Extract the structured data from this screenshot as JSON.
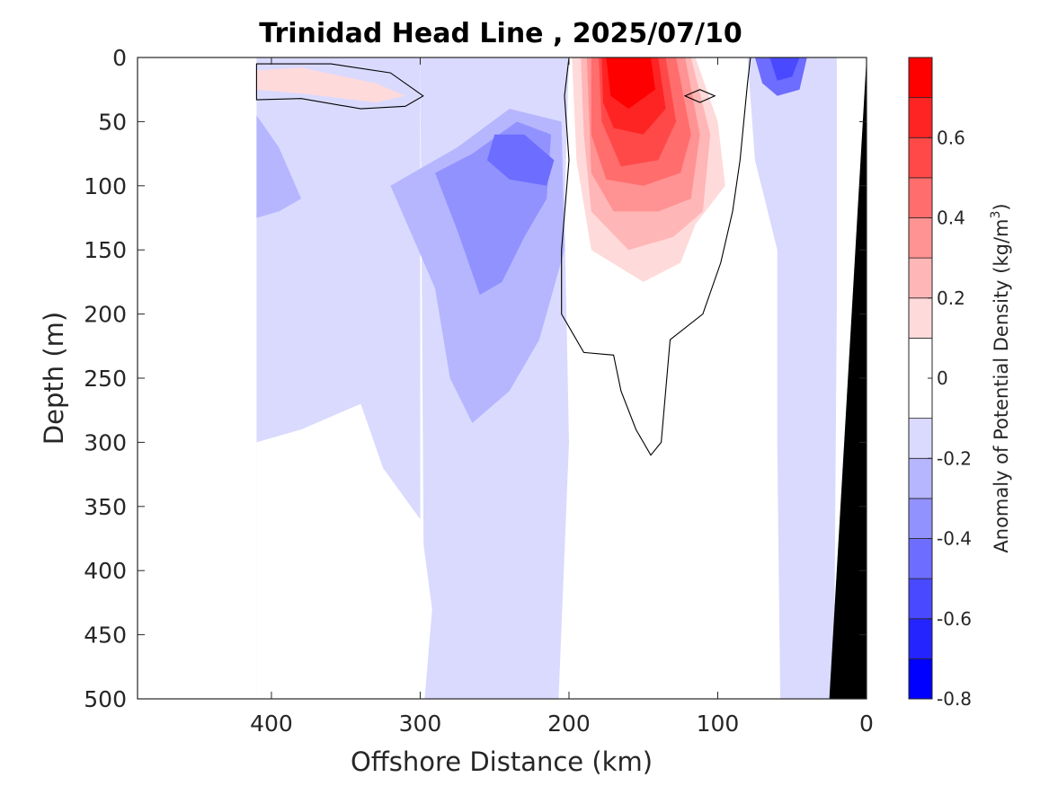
{
  "chart_data": {
    "type": "contour",
    "title": "Trinidad Head Line , 2025/07/10",
    "xlabel": "Offshore Distance (km)",
    "ylabel": "Depth (m)",
    "xlim": [
      490,
      0
    ],
    "ylim": [
      0,
      500
    ],
    "x_ticks": [
      400,
      300,
      200,
      100,
      0
    ],
    "y_ticks": [
      0,
      50,
      100,
      150,
      200,
      250,
      300,
      350,
      400,
      450,
      500
    ],
    "colorbar": {
      "label": "Anomaly of Potential Density (kg/m",
      "label_superscript": "3",
      "label_suffix": ")",
      "range": [
        -0.8,
        0.8
      ],
      "ticks": [
        0.6,
        0.4,
        0.2,
        0,
        -0.2,
        -0.4,
        -0.6,
        -0.8
      ],
      "levels": [
        -0.8,
        -0.7,
        -0.6,
        -0.5,
        -0.4,
        -0.3,
        -0.2,
        -0.1,
        0.1,
        0.2,
        0.3,
        0.4,
        0.5,
        0.6,
        0.7,
        0.8
      ],
      "colors": [
        "#0000ff",
        "#2424ff",
        "#4949ff",
        "#6d6dff",
        "#9292ff",
        "#b6b6ff",
        "#dadaff",
        "#ffffff",
        "#ffdada",
        "#ffb6b6",
        "#ff9292",
        "#ff6d6d",
        "#ff4949",
        "#ff2424",
        "#ff0000"
      ]
    },
    "data_extent_km": [
      410,
      0
    ],
    "bathymetry_color": "#000000",
    "bathymetry": [
      [
        0,
        0
      ],
      [
        25,
        500
      ]
    ],
    "regions": [
      {
        "name": "offshore-light-blue",
        "level": -0.15,
        "points": [
          [
            410,
            0
          ],
          [
            300,
            0
          ],
          [
            300,
            500
          ],
          [
            410,
            500
          ]
        ]
      },
      {
        "name": "central-light-blue",
        "level": -0.15,
        "points": [
          [
            300,
            0
          ],
          [
            200,
            0
          ],
          [
            203,
            120
          ],
          [
            200,
            300
          ],
          [
            207,
            500
          ],
          [
            297,
            500
          ]
        ]
      },
      {
        "name": "inner-light-blue",
        "level": -0.15,
        "points": [
          [
            80,
            0
          ],
          [
            20,
            0
          ],
          [
            20,
            200
          ],
          [
            22,
            500
          ],
          [
            58,
            500
          ],
          [
            60,
            300
          ],
          [
            60,
            150
          ],
          [
            75,
            80
          ]
        ]
      },
      {
        "name": "offshore-white-patch",
        "level": 0,
        "points": [
          [
            410,
            300
          ],
          [
            380,
            290
          ],
          [
            340,
            270
          ],
          [
            325,
            320
          ],
          [
            300,
            360
          ],
          [
            292,
            430
          ],
          [
            297,
            500
          ],
          [
            410,
            500
          ]
        ]
      },
      {
        "name": "central-blue-patch",
        "level": -0.25,
        "points": [
          [
            320,
            100
          ],
          [
            275,
            70
          ],
          [
            240,
            40
          ],
          [
            205,
            50
          ],
          [
            203,
            150
          ],
          [
            220,
            220
          ],
          [
            240,
            260
          ],
          [
            265,
            285
          ],
          [
            280,
            250
          ],
          [
            290,
            180
          ]
        ]
      },
      {
        "name": "central-blue-core",
        "level": -0.35,
        "points": [
          [
            290,
            90
          ],
          [
            265,
            75
          ],
          [
            235,
            50
          ],
          [
            212,
            60
          ],
          [
            215,
            110
          ],
          [
            230,
            140
          ],
          [
            245,
            175
          ],
          [
            260,
            185
          ],
          [
            275,
            135
          ]
        ]
      },
      {
        "name": "central-blue-max",
        "level": -0.45,
        "points": [
          [
            250,
            60
          ],
          [
            230,
            60
          ],
          [
            210,
            80
          ],
          [
            215,
            100
          ],
          [
            240,
            95
          ],
          [
            255,
            80
          ]
        ]
      },
      {
        "name": "offshore-blue-patch",
        "level": -0.25,
        "points": [
          [
            410,
            45
          ],
          [
            395,
            70
          ],
          [
            380,
            110
          ],
          [
            395,
            120
          ],
          [
            410,
            125
          ]
        ]
      },
      {
        "name": "nearshore-blue-patch",
        "level": -0.45,
        "points": [
          [
            75,
            0
          ],
          [
            40,
            0
          ],
          [
            45,
            25
          ],
          [
            60,
            30
          ],
          [
            70,
            20
          ]
        ]
      },
      {
        "name": "nearshore-blue-core",
        "level": -0.55,
        "points": [
          [
            65,
            0
          ],
          [
            45,
            0
          ],
          [
            50,
            15
          ],
          [
            60,
            18
          ]
        ]
      },
      {
        "name": "upwelling-red-0.1",
        "level": 0.15,
        "points": [
          [
            198,
            0
          ],
          [
            115,
            0
          ],
          [
            100,
            50
          ],
          [
            95,
            100
          ],
          [
            115,
            130
          ],
          [
            125,
            160
          ],
          [
            150,
            175
          ],
          [
            185,
            150
          ],
          [
            195,
            80
          ]
        ]
      },
      {
        "name": "upwelling-red-0.2",
        "level": 0.25,
        "points": [
          [
            192,
            0
          ],
          [
            118,
            0
          ],
          [
            105,
            60
          ],
          [
            110,
            120
          ],
          [
            130,
            140
          ],
          [
            160,
            150
          ],
          [
            185,
            120
          ],
          [
            190,
            60
          ]
        ]
      },
      {
        "name": "upwelling-red-0.3",
        "level": 0.35,
        "points": [
          [
            188,
            0
          ],
          [
            122,
            0
          ],
          [
            112,
            60
          ],
          [
            118,
            110
          ],
          [
            140,
            120
          ],
          [
            170,
            120
          ],
          [
            185,
            90
          ]
        ]
      },
      {
        "name": "upwelling-red-0.4",
        "level": 0.45,
        "points": [
          [
            185,
            0
          ],
          [
            128,
            0
          ],
          [
            118,
            60
          ],
          [
            125,
            90
          ],
          [
            150,
            100
          ],
          [
            175,
            95
          ],
          [
            185,
            60
          ]
        ]
      },
      {
        "name": "upwelling-red-0.5",
        "level": 0.55,
        "points": [
          [
            180,
            0
          ],
          [
            135,
            0
          ],
          [
            128,
            50
          ],
          [
            140,
            80
          ],
          [
            165,
            85
          ],
          [
            178,
            50
          ]
        ]
      },
      {
        "name": "upwelling-red-0.6",
        "level": 0.65,
        "points": [
          [
            178,
            0
          ],
          [
            140,
            0
          ],
          [
            135,
            40
          ],
          [
            150,
            60
          ],
          [
            170,
            55
          ],
          [
            177,
            35
          ]
        ]
      },
      {
        "name": "upwelling-red-0.7",
        "level": 0.75,
        "points": [
          [
            175,
            0
          ],
          [
            145,
            0
          ],
          [
            142,
            25
          ],
          [
            160,
            40
          ],
          [
            172,
            30
          ]
        ]
      },
      {
        "name": "surface-pink-patch",
        "level": 0.15,
        "points": [
          [
            410,
            10
          ],
          [
            380,
            8
          ],
          [
            330,
            20
          ],
          [
            310,
            30
          ],
          [
            330,
            35
          ],
          [
            380,
            28
          ],
          [
            410,
            25
          ]
        ]
      }
    ],
    "zero_contours": [
      {
        "name": "zero-contour-offshore",
        "points": [
          [
            410,
            5
          ],
          [
            360,
            5
          ],
          [
            320,
            12
          ],
          [
            298,
            30
          ],
          [
            310,
            38
          ],
          [
            340,
            40
          ],
          [
            380,
            32
          ],
          [
            410,
            33
          ]
        ]
      },
      {
        "name": "zero-contour-central",
        "points": [
          [
            200,
            0
          ],
          [
            203,
            30
          ],
          [
            200,
            80
          ],
          [
            205,
            150
          ],
          [
            205,
            200
          ],
          [
            190,
            230
          ],
          [
            170,
            232
          ],
          [
            165,
            260
          ],
          [
            155,
            290
          ],
          [
            145,
            310
          ],
          [
            138,
            300
          ],
          [
            132,
            220
          ],
          [
            110,
            200
          ],
          [
            98,
            160
          ],
          [
            90,
            120
          ],
          [
            85,
            80
          ],
          [
            80,
            20
          ],
          [
            78,
            0
          ]
        ]
      },
      {
        "name": "zero-contour-small",
        "points": [
          [
            122,
            30
          ],
          [
            112,
            25
          ],
          [
            102,
            30
          ],
          [
            112,
            35
          ]
        ]
      }
    ]
  }
}
